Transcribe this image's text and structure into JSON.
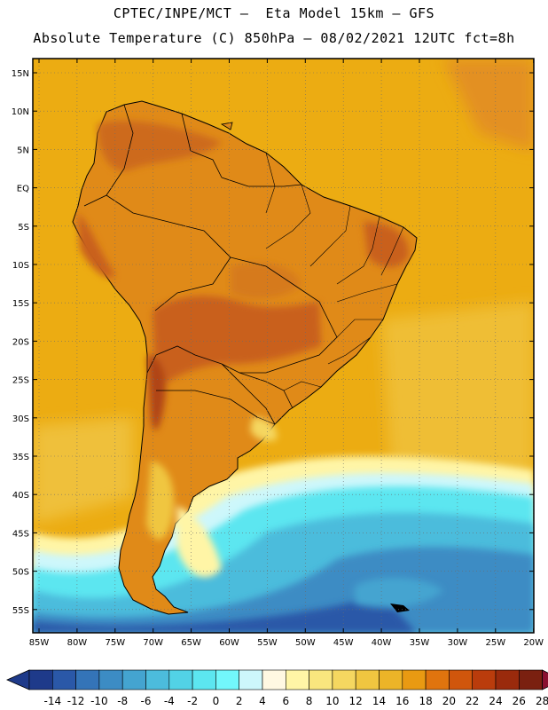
{
  "header": {
    "line1": "CPTEC/INPE/MCT –  Eta Model 15km – GFS",
    "line2": "Absolute Temperature (C) 850hPa – 08/02/2021 12UTC fct=8h"
  },
  "axes": {
    "lat_labels": [
      "15N",
      "10N",
      "5N",
      "EQ",
      "5S",
      "10S",
      "15S",
      "20S",
      "25S",
      "30S",
      "35S",
      "40S",
      "45S",
      "50S",
      "55S"
    ],
    "lon_labels": [
      "85W",
      "80W",
      "75W",
      "70W",
      "65W",
      "60W",
      "55W",
      "50W",
      "45W",
      "40W",
      "35W",
      "30W",
      "25W",
      "20W"
    ]
  },
  "colorbar": {
    "labels": [
      "-14",
      "-12",
      "-10",
      "-8",
      "-6",
      "-4",
      "-2",
      "0",
      "2",
      "4",
      "6",
      "8",
      "10",
      "12",
      "14",
      "16",
      "18",
      "20",
      "22",
      "24",
      "26",
      "28"
    ],
    "colors": [
      "#1e3a8a",
      "#2a58a8",
      "#3474b8",
      "#3c8cc4",
      "#44a4d0",
      "#4cbcdc",
      "#52d2e6",
      "#5ce6f0",
      "#72f7fb",
      "#cdf7fb",
      "#fff8e2",
      "#fff5a6",
      "#f9e67e",
      "#f5d760",
      "#f0c640",
      "#ecb428",
      "#e99a12",
      "#e0740e",
      "#d0560c",
      "#ba3c0c",
      "#9a2a0c",
      "#7a2010"
    ]
  },
  "legend_colors": {
    "ocean_warm": "#ecac12",
    "land_hot": "#c9601c",
    "cold_sea": "#4cbcdc"
  }
}
